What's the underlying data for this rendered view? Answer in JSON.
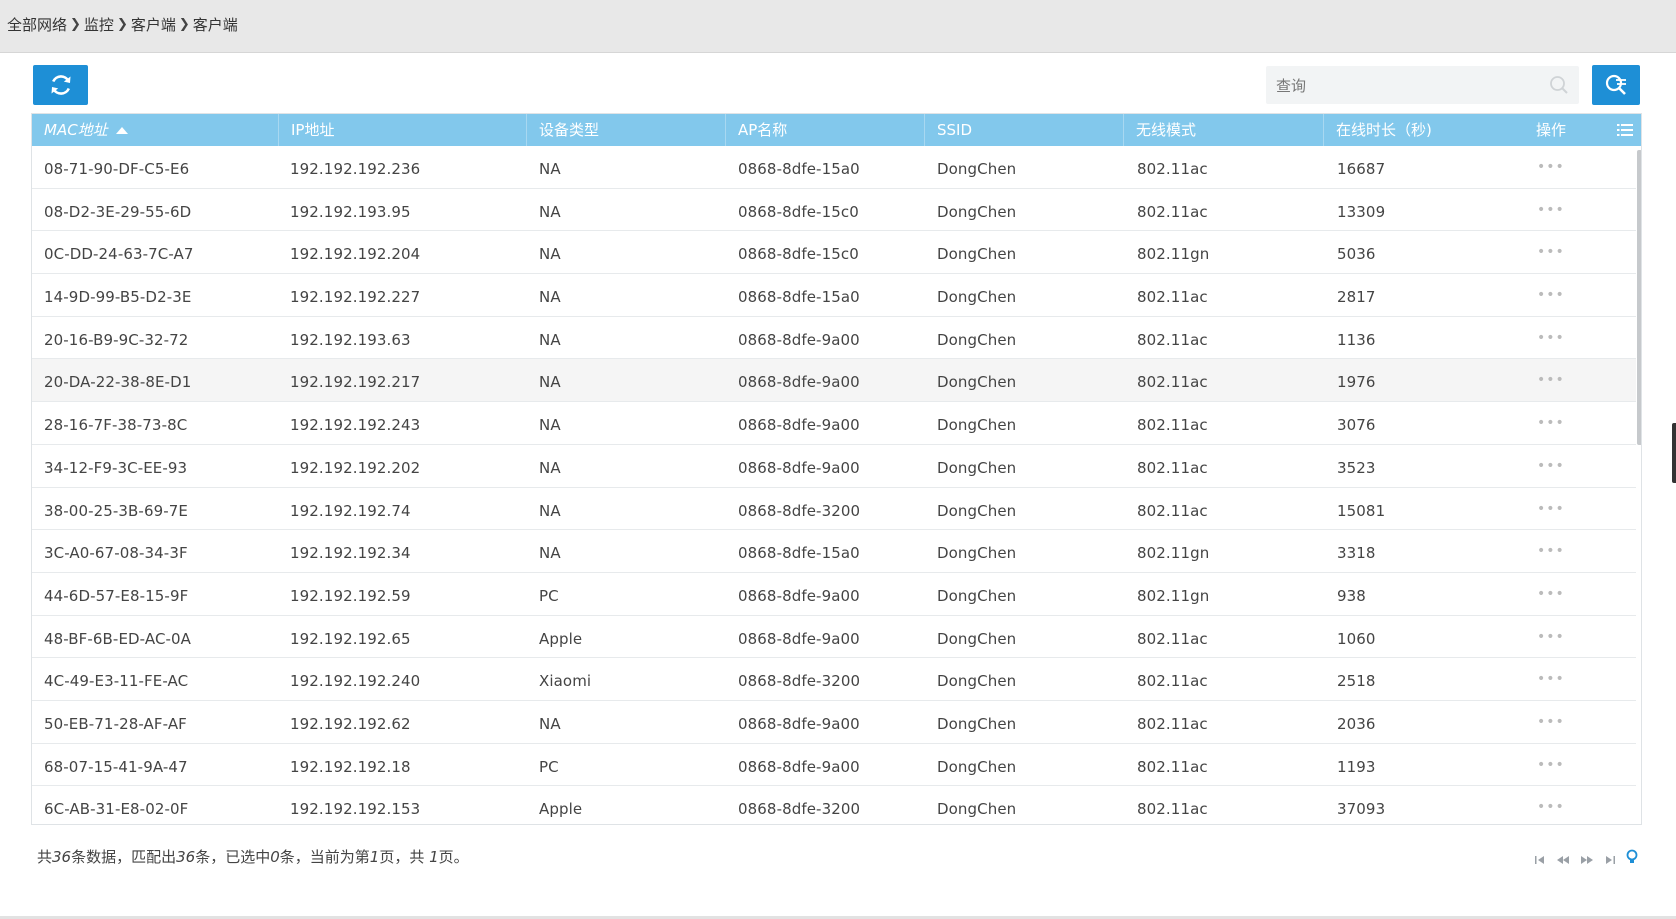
{
  "breadcrumb": [
    "全部网络",
    "监控",
    "客户端",
    "客户端"
  ],
  "toolbar": {
    "refresh_icon": "refresh-icon",
    "search_placeholder": "查询",
    "search_icon": "search-icon",
    "advanced_search_icon": "advanced-search-icon",
    "accent_color": "#1e8fd6"
  },
  "table": {
    "header_color": "#82c8ec",
    "columns": [
      "MAC地址",
      "IP地址",
      "设备类型",
      "AP名称",
      "SSID",
      "无线模式",
      "在线时长（秒)",
      "操作"
    ],
    "sorted_column": "MAC地址",
    "sort_direction": "ascending",
    "rows": [
      {
        "mac": "08-71-90-DF-C5-E6",
        "ip": "192.192.192.236",
        "type": "NA",
        "ap": "0868-8dfe-15a0",
        "ssid": "DongChen",
        "mode": "802.11ac",
        "time": "16687",
        "action": "•••"
      },
      {
        "mac": "08-D2-3E-29-55-6D",
        "ip": "192.192.193.95",
        "type": "NA",
        "ap": "0868-8dfe-15c0",
        "ssid": "DongChen",
        "mode": "802.11ac",
        "time": "13309",
        "action": "•••"
      },
      {
        "mac": "0C-DD-24-63-7C-A7",
        "ip": "192.192.192.204",
        "type": "NA",
        "ap": "0868-8dfe-15c0",
        "ssid": "DongChen",
        "mode": "802.11gn",
        "time": "5036",
        "action": "•••"
      },
      {
        "mac": "14-9D-99-B5-D2-3E",
        "ip": "192.192.192.227",
        "type": "NA",
        "ap": "0868-8dfe-15a0",
        "ssid": "DongChen",
        "mode": "802.11ac",
        "time": "2817",
        "action": "•••"
      },
      {
        "mac": "20-16-B9-9C-32-72",
        "ip": "192.192.193.63",
        "type": "NA",
        "ap": "0868-8dfe-9a00",
        "ssid": "DongChen",
        "mode": "802.11ac",
        "time": "1136",
        "action": "•••"
      },
      {
        "mac": "20-DA-22-38-8E-D1",
        "ip": "192.192.192.217",
        "type": "NA",
        "ap": "0868-8dfe-9a00",
        "ssid": "DongChen",
        "mode": "802.11ac",
        "time": "1976",
        "action": "•••"
      },
      {
        "mac": "28-16-7F-38-73-8C",
        "ip": "192.192.192.243",
        "type": "NA",
        "ap": "0868-8dfe-9a00",
        "ssid": "DongChen",
        "mode": "802.11ac",
        "time": "3076",
        "action": "•••"
      },
      {
        "mac": "34-12-F9-3C-EE-93",
        "ip": "192.192.192.202",
        "type": "NA",
        "ap": "0868-8dfe-9a00",
        "ssid": "DongChen",
        "mode": "802.11ac",
        "time": "3523",
        "action": "•••"
      },
      {
        "mac": "38-00-25-3B-69-7E",
        "ip": "192.192.192.74",
        "type": "NA",
        "ap": "0868-8dfe-3200",
        "ssid": "DongChen",
        "mode": "802.11ac",
        "time": "15081",
        "action": "•••"
      },
      {
        "mac": "3C-A0-67-08-34-3F",
        "ip": "192.192.192.34",
        "type": "NA",
        "ap": "0868-8dfe-15a0",
        "ssid": "DongChen",
        "mode": "802.11gn",
        "time": "3318",
        "action": "•••"
      },
      {
        "mac": "44-6D-57-E8-15-9F",
        "ip": "192.192.192.59",
        "type": "PC",
        "ap": "0868-8dfe-9a00",
        "ssid": "DongChen",
        "mode": "802.11gn",
        "time": "938",
        "action": "•••"
      },
      {
        "mac": "48-BF-6B-ED-AC-0A",
        "ip": "192.192.192.65",
        "type": "Apple",
        "ap": "0868-8dfe-9a00",
        "ssid": "DongChen",
        "mode": "802.11ac",
        "time": "1060",
        "action": "•••"
      },
      {
        "mac": "4C-49-E3-11-FE-AC",
        "ip": "192.192.192.240",
        "type": "Xiaomi",
        "ap": "0868-8dfe-3200",
        "ssid": "DongChen",
        "mode": "802.11ac",
        "time": "2518",
        "action": "•••"
      },
      {
        "mac": "50-EB-71-28-AF-AF",
        "ip": "192.192.192.62",
        "type": "NA",
        "ap": "0868-8dfe-9a00",
        "ssid": "DongChen",
        "mode": "802.11ac",
        "time": "2036",
        "action": "•••"
      },
      {
        "mac": "68-07-15-41-9A-47",
        "ip": "192.192.192.18",
        "type": "PC",
        "ap": "0868-8dfe-9a00",
        "ssid": "DongChen",
        "mode": "802.11ac",
        "time": "1193",
        "action": "•••"
      },
      {
        "mac": "6C-AB-31-E8-02-0F",
        "ip": "192.192.192.153",
        "type": "Apple",
        "ap": "0868-8dfe-3200",
        "ssid": "DongChen",
        "mode": "802.11ac",
        "time": "37093",
        "action": "•••"
      }
    ]
  },
  "footer": {
    "prefix": "共",
    "total": "36",
    "text1": "条数据，匹配出",
    "matched": "36",
    "text2": "条，已选中",
    "selected": "0",
    "text3": "条，当前为第",
    "page": "1",
    "text4": "页，共 ",
    "pages": "1",
    "text5": "页。"
  },
  "pager": {
    "icons": [
      "first-page-icon",
      "prev-page-icon",
      "next-page-icon",
      "last-page-icon",
      "tip-bulb-icon"
    ]
  }
}
